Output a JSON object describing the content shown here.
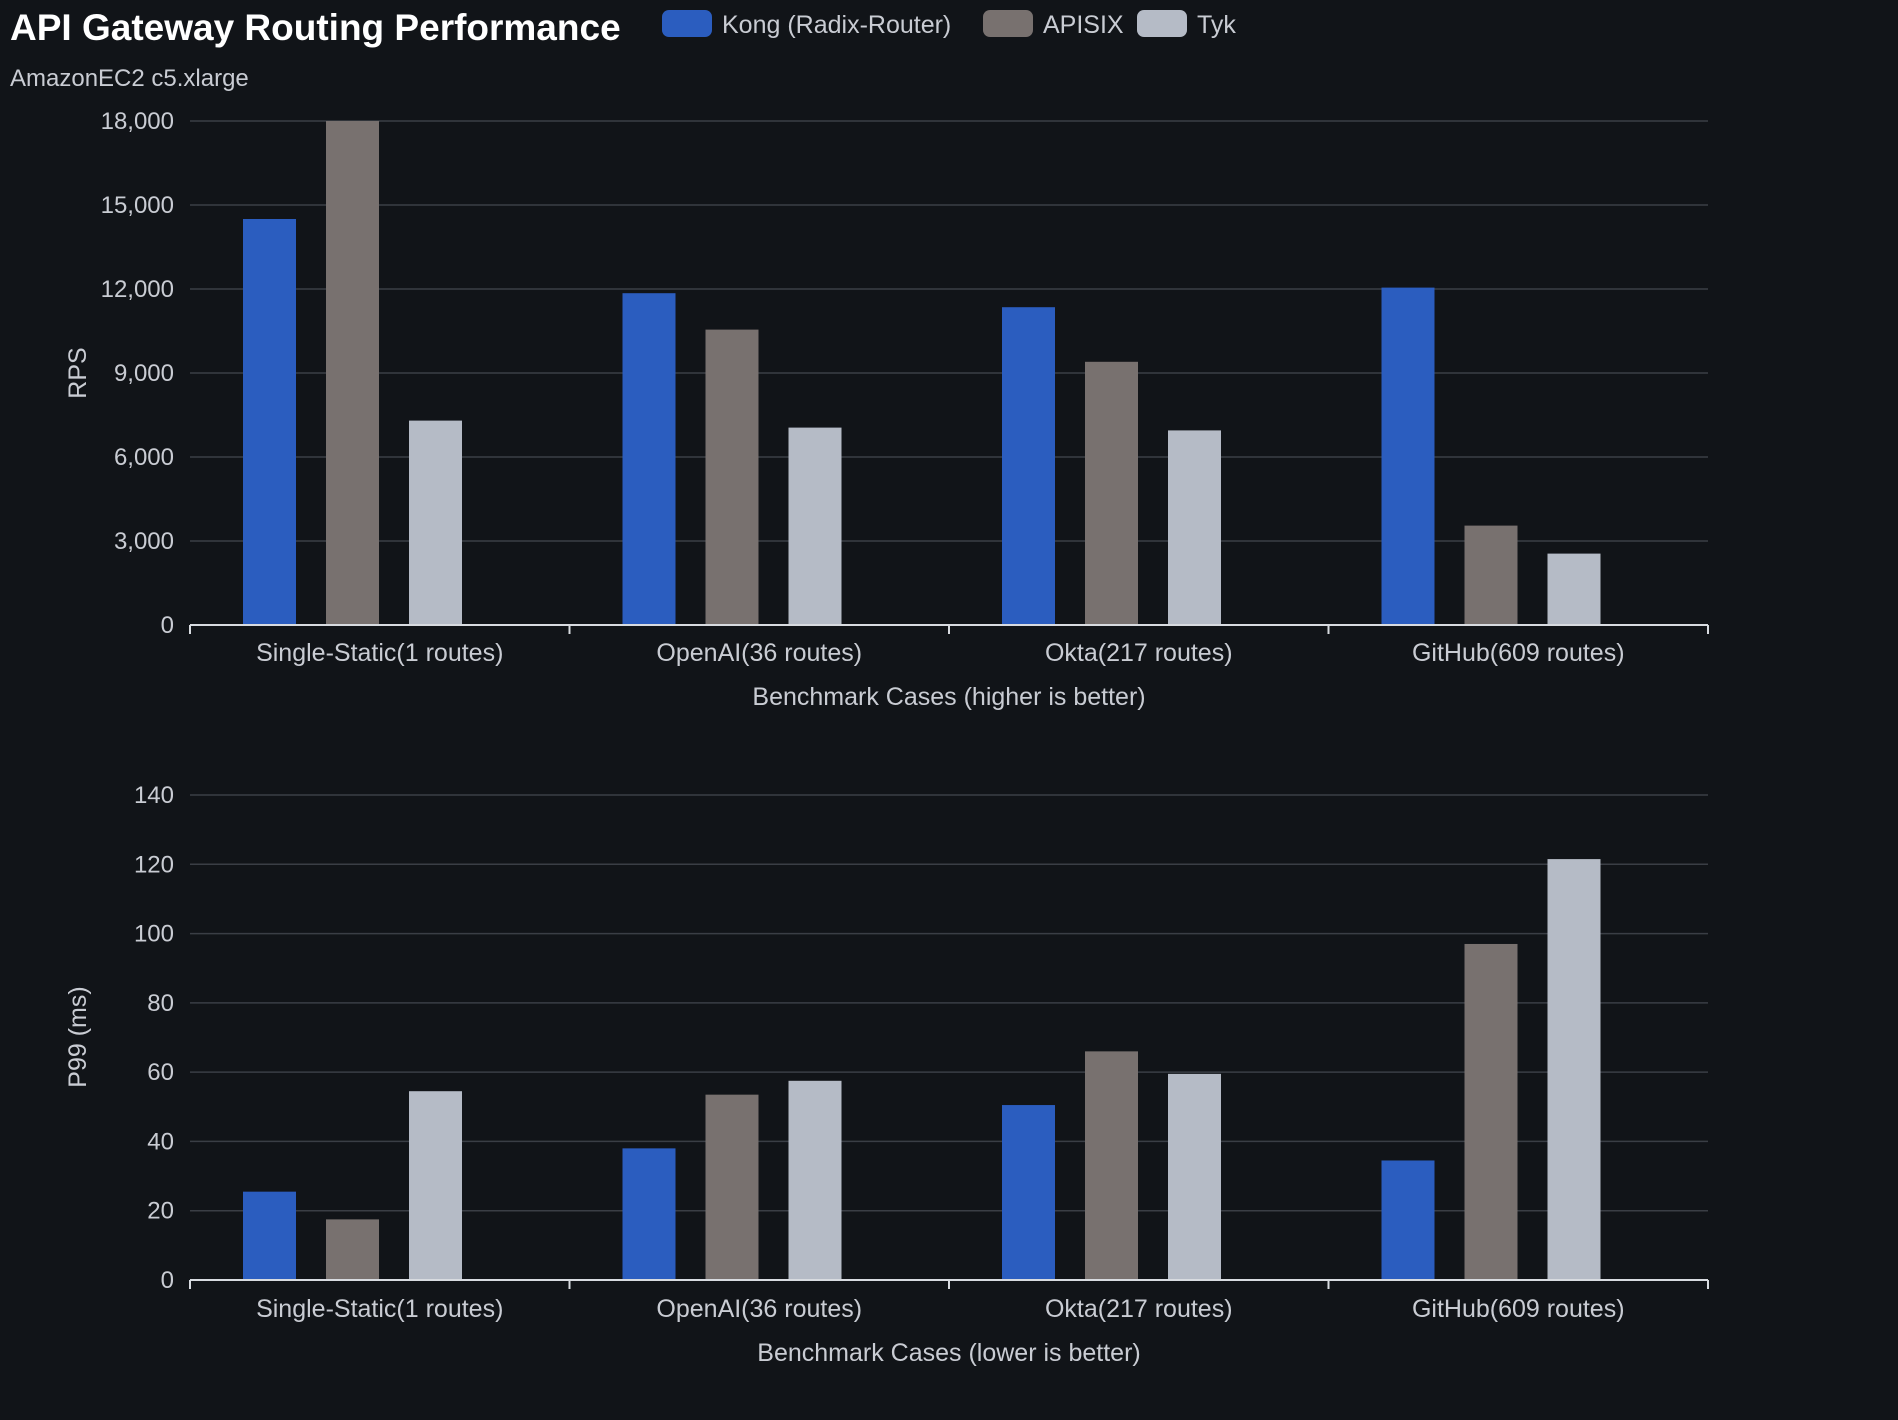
{
  "chart_data": {
    "type": "bar",
    "title": "API Gateway Routing Performance",
    "subtitle": "AmazonEC2 c5.xlarge",
    "legend": {
      "position": "top",
      "entries": [
        {
          "name": "Kong (Radix-Router)",
          "color": "#2b5dbf"
        },
        {
          "name": "APISIX",
          "color": "#78716f"
        },
        {
          "name": "Tyk",
          "color": "#b5bbc6"
        }
      ]
    },
    "panels": [
      {
        "ylabel": "RPS",
        "xlabel": "Benchmark Cases (higher is better)",
        "ylim": [
          0,
          18000
        ],
        "yticks": [
          0,
          3000,
          6000,
          9000,
          12000,
          15000,
          18000
        ],
        "ytick_labels": [
          "0",
          "3,000",
          "6,000",
          "9,000",
          "12,000",
          "15,000",
          "18,000"
        ],
        "categories": [
          "Single-Static(1 routes)",
          "OpenAI(36 routes)",
          "Okta(217 routes)",
          "GitHub(609 routes)"
        ],
        "grid": true,
        "series": [
          {
            "name": "Kong (Radix-Router)",
            "values": [
              14500,
              11850,
              11350,
              12050
            ]
          },
          {
            "name": "APISIX",
            "values": [
              18000,
              10550,
              9400,
              3550
            ]
          },
          {
            "name": "Tyk",
            "values": [
              7300,
              7050,
              6950,
              2550
            ]
          }
        ]
      },
      {
        "ylabel": "P99 (ms)",
        "xlabel": "Benchmark Cases (lower is better)",
        "ylim": [
          0,
          140
        ],
        "yticks": [
          0,
          20,
          40,
          60,
          80,
          100,
          120,
          140
        ],
        "ytick_labels": [
          "0",
          "20",
          "40",
          "60",
          "80",
          "100",
          "120",
          "140"
        ],
        "categories": [
          "Single-Static(1 routes)",
          "OpenAI(36 routes)",
          "Okta(217 routes)",
          "GitHub(609 routes)"
        ],
        "grid": true,
        "series": [
          {
            "name": "Kong (Radix-Router)",
            "values": [
              25.5,
              38,
              50.5,
              34.5
            ]
          },
          {
            "name": "APISIX",
            "values": [
              17.5,
              53.5,
              66,
              97
            ]
          },
          {
            "name": "Tyk",
            "values": [
              54.5,
              57.5,
              59.5,
              121.5
            ]
          }
        ]
      }
    ]
  }
}
